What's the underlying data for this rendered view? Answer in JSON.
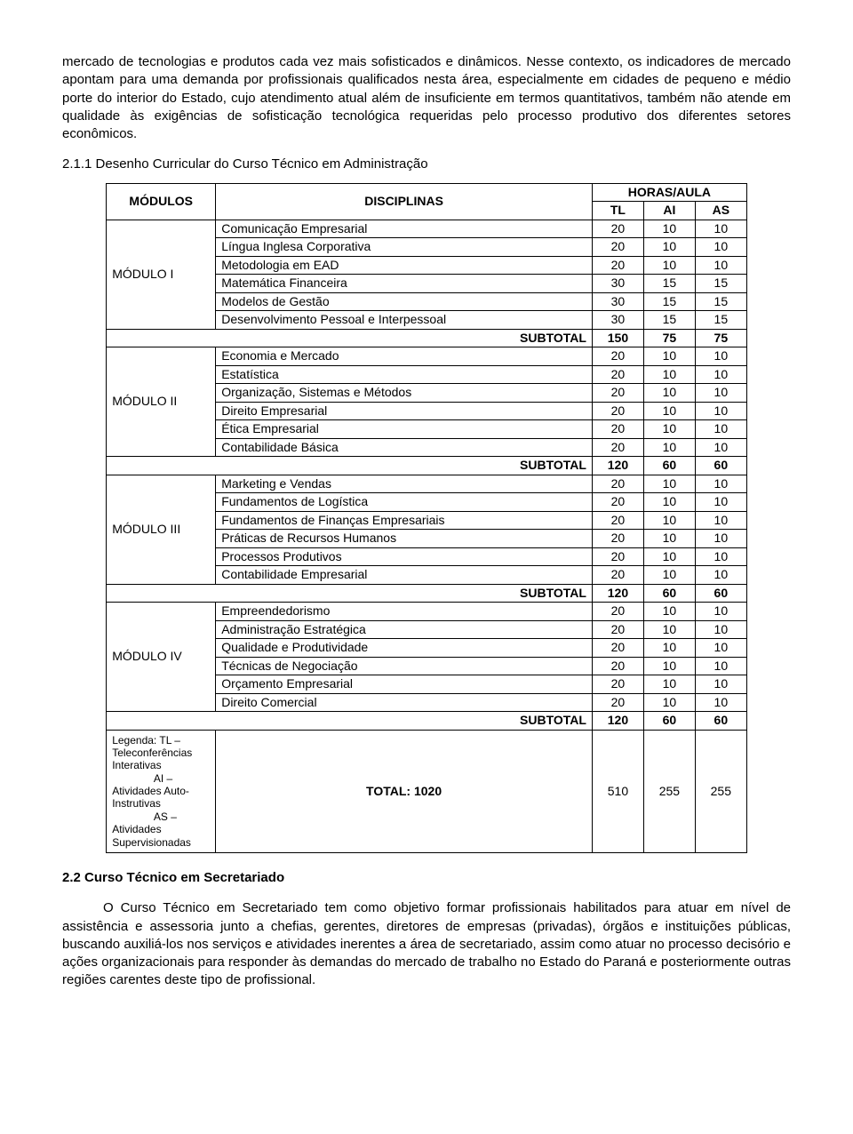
{
  "para1": "mercado de tecnologias e produtos cada vez mais sofisticados e dinâmicos. Nesse contexto, os indicadores de mercado apontam para uma demanda por profissionais qualificados nesta área, especialmente em cidades de pequeno e médio porte do interior do Estado, cujo atendimento atual além de insuficiente em termos quantitativos, também não atende em qualidade às exigências de sofisticação tecnológica requeridas pelo processo produtivo dos diferentes setores econômicos.",
  "heading211": "2.1.1 Desenho Curricular do Curso Técnico em Administração",
  "headers": {
    "modulos": "MÓDULOS",
    "disciplinas": "DISCIPLINAS",
    "horasaula": "HORAS/AULA",
    "tl": "TL",
    "ai": "AI",
    "as": "AS"
  },
  "modules": [
    {
      "name": "MÓDULO I",
      "rows": [
        {
          "d": "Comunicação Empresarial",
          "tl": 20,
          "ai": 10,
          "as": 10
        },
        {
          "d": "Língua Inglesa Corporativa",
          "tl": 20,
          "ai": 10,
          "as": 10
        },
        {
          "d": "Metodologia em EAD",
          "tl": 20,
          "ai": 10,
          "as": 10
        },
        {
          "d": "Matemática Financeira",
          "tl": 30,
          "ai": 15,
          "as": 15
        },
        {
          "d": "Modelos de Gestão",
          "tl": 30,
          "ai": 15,
          "as": 15
        },
        {
          "d": "Desenvolvimento Pessoal e Interpessoal",
          "tl": 30,
          "ai": 15,
          "as": 15
        }
      ],
      "subtotal": {
        "label": "SUBTOTAL",
        "tl": 150,
        "ai": 75,
        "as": 75
      }
    },
    {
      "name": "MÓDULO II",
      "rows": [
        {
          "d": "Economia e Mercado",
          "tl": 20,
          "ai": 10,
          "as": 10
        },
        {
          "d": "Estatística",
          "tl": 20,
          "ai": 10,
          "as": 10
        },
        {
          "d": "Organização, Sistemas e Métodos",
          "tl": 20,
          "ai": 10,
          "as": 10
        },
        {
          "d": "Direito Empresarial",
          "tl": 20,
          "ai": 10,
          "as": 10
        },
        {
          "d": "Ética Empresarial",
          "tl": 20,
          "ai": 10,
          "as": 10
        },
        {
          "d": "Contabilidade Básica",
          "tl": 20,
          "ai": 10,
          "as": 10
        }
      ],
      "subtotal": {
        "label": "SUBTOTAL",
        "tl": 120,
        "ai": 60,
        "as": 60
      }
    },
    {
      "name": "MÓDULO III",
      "rows": [
        {
          "d": "Marketing e Vendas",
          "tl": 20,
          "ai": 10,
          "as": 10
        },
        {
          "d": "Fundamentos de Logística",
          "tl": 20,
          "ai": 10,
          "as": 10
        },
        {
          "d": "Fundamentos de Finanças Empresariais",
          "tl": 20,
          "ai": 10,
          "as": 10
        },
        {
          "d": "Práticas de Recursos Humanos",
          "tl": 20,
          "ai": 10,
          "as": 10
        },
        {
          "d": "Processos Produtivos",
          "tl": 20,
          "ai": 10,
          "as": 10
        },
        {
          "d": "Contabilidade Empresarial",
          "tl": 20,
          "ai": 10,
          "as": 10
        }
      ],
      "subtotal": {
        "label": "SUBTOTAL",
        "tl": 120,
        "ai": 60,
        "as": 60
      }
    },
    {
      "name": "MÓDULO IV",
      "rows": [
        {
          "d": "Empreendedorismo",
          "tl": 20,
          "ai": 10,
          "as": 10
        },
        {
          "d": "Administração Estratégica",
          "tl": 20,
          "ai": 10,
          "as": 10
        },
        {
          "d": "Qualidade e Produtividade",
          "tl": 20,
          "ai": 10,
          "as": 10
        },
        {
          "d": "Técnicas de Negociação",
          "tl": 20,
          "ai": 10,
          "as": 10
        },
        {
          "d": "Orçamento Empresarial",
          "tl": 20,
          "ai": 10,
          "as": 10
        },
        {
          "d": "Direito Comercial",
          "tl": 20,
          "ai": 10,
          "as": 10
        }
      ],
      "subtotal": {
        "label": "SUBTOTAL",
        "tl": 120,
        "ai": 60,
        "as": 60
      }
    }
  ],
  "legend": {
    "line1": "Legenda: TL – Teleconferências Interativas",
    "line2": "AI – Atividades Auto-Instrutivas",
    "line3": "AS – Atividades Supervisionadas"
  },
  "total": {
    "label": "TOTAL: 1020",
    "tl": 510,
    "ai": 255,
    "as": 255
  },
  "heading22": "2.2 Curso Técnico em Secretariado",
  "para2": "O Curso Técnico em Secretariado tem como objetivo formar profissionais habilitados para atuar em nível de assistência e assessoria junto a chefias, gerentes, diretores de empresas (privadas), órgãos e instituições públicas, buscando auxiliá-los nos serviços e atividades inerentes a área de secretariado, assim como atuar no processo decisório e ações organizacionais para responder às demandas do mercado de trabalho no Estado do Paraná e posteriormente outras regiões carentes deste tipo de profissional."
}
